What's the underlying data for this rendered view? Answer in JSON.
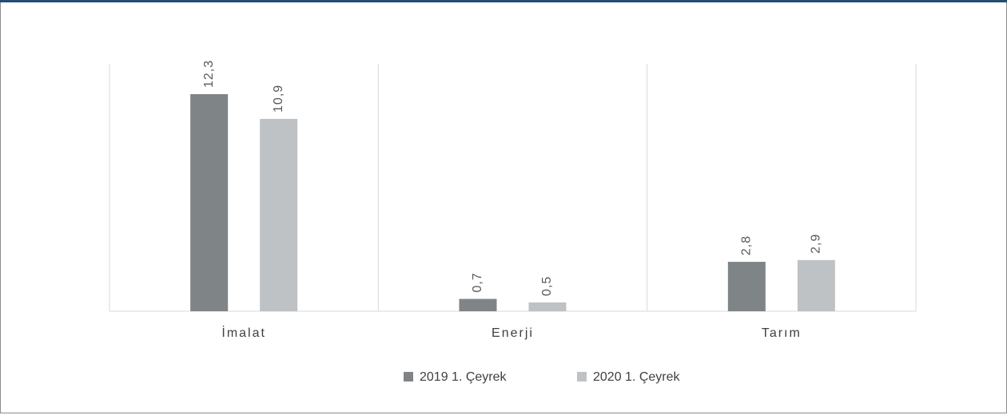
{
  "chart_data": {
    "type": "bar",
    "categories": [
      "İmalat",
      "Enerji",
      "Tarım"
    ],
    "series": [
      {
        "name": "2019 1. Çeyrek",
        "color": "#7f8487",
        "values": [
          12.3,
          0.7,
          2.8
        ],
        "value_labels": [
          "12,3",
          "0,7",
          "2,8"
        ]
      },
      {
        "name": "2020 1. Çeyrek",
        "color": "#bfc2c5",
        "values": [
          10.9,
          0.5,
          2.9
        ],
        "value_labels": [
          "10,9",
          "0,5",
          "2,9"
        ]
      }
    ],
    "legend": "bottom"
  }
}
